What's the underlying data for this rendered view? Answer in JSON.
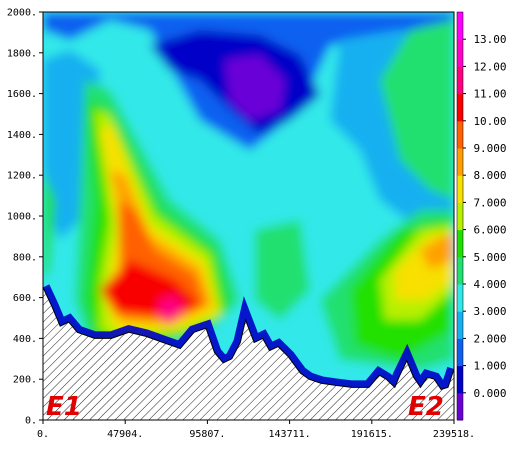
{
  "chart_data": {
    "type": "heatmap",
    "title": "",
    "xlabel": "",
    "ylabel": "",
    "xlim": [
      0,
      239518
    ],
    "ylim": [
      0,
      2000
    ],
    "x_ticks": [
      "0.",
      "47904.",
      "95807.",
      "143711.",
      "191615.",
      "239518."
    ],
    "x_tick_values": [
      0,
      47904,
      95807,
      143711,
      191615,
      239518
    ],
    "y_ticks": [
      "0.",
      "200.",
      "400.",
      "600.",
      "800.",
      "1000.",
      "1200.",
      "1400.",
      "1600.",
      "1800.",
      "2000."
    ],
    "y_tick_values": [
      0,
      200,
      400,
      600,
      800,
      1000,
      1200,
      1400,
      1600,
      1800,
      2000
    ],
    "colorbar": {
      "labels": [
        "0.000",
        "1.000",
        "2.000",
        "3.000",
        "4.000",
        "5.000",
        "6.000",
        "7.000",
        "8.000",
        "9.000",
        "10.00",
        "11.00",
        "12.00",
        "13.00"
      ],
      "min": -1,
      "max": 14,
      "colors": [
        "#6a00d8",
        "#0000c8",
        "#1060f0",
        "#18b0f0",
        "#30e8e8",
        "#20e070",
        "#20e000",
        "#b8f000",
        "#f8e000",
        "#ffa000",
        "#ff6000",
        "#f80000",
        "#ff0080",
        "#ff00c8",
        "#ff00ff"
      ]
    },
    "annotations": [
      "E1",
      "E2"
    ],
    "terrain_x": [
      0,
      5000,
      10000,
      15000,
      20000,
      30000,
      40000,
      50000,
      60000,
      70000,
      80000,
      88000,
      95000,
      100000,
      105000,
      110000,
      115000,
      118000,
      123000,
      128000,
      132000,
      137000,
      143000,
      150000,
      155000,
      162000,
      170000,
      180000,
      190000,
      196000,
      200000,
      205000,
      208000,
      212000,
      216000,
      220000,
      224000,
      228000,
      232000,
      236000,
      239518
    ],
    "terrain_height": [
      650,
      560,
      460,
      480,
      430,
      400,
      400,
      430,
      410,
      380,
      350,
      430,
      450,
      330,
      280,
      300,
      380,
      490,
      380,
      400,
      340,
      360,
      310,
      230,
      200,
      180,
      170,
      160,
      160,
      220,
      200,
      160,
      220,
      290,
      210,
      160,
      210,
      200,
      150,
      160,
      250
    ]
  }
}
